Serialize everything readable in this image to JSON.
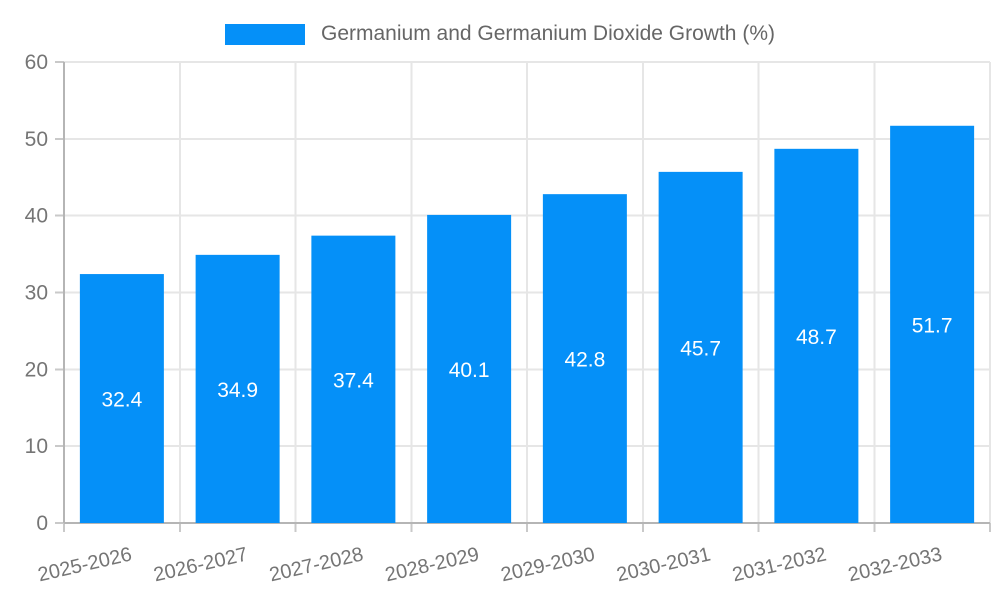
{
  "legend": {
    "position": "top",
    "items": [
      {
        "label": "Germanium and Germanium Dioxide Growth (%)"
      }
    ]
  },
  "chart_data": {
    "type": "bar",
    "title": "Germanium and Germanium Dioxide Growth (%)",
    "categories": [
      "2025-2026",
      "2026-2027",
      "2027-2028",
      "2028-2029",
      "2029-2030",
      "2030-2031",
      "2031-2032",
      "2032-2033"
    ],
    "series": [
      {
        "name": "Germanium and Germanium Dioxide Growth (%)",
        "values": [
          32.4,
          34.9,
          37.4,
          40.1,
          42.8,
          45.7,
          48.7,
          51.7
        ]
      }
    ],
    "bar_value_labels": [
      "32.4",
      "34.9",
      "37.4",
      "40.1",
      "42.8",
      "45.7",
      "48.7",
      "51.7"
    ],
    "xlabel": "",
    "ylabel": "",
    "ylim": [
      0,
      60
    ],
    "yticks": [
      0,
      10,
      20,
      30,
      40,
      50,
      60
    ],
    "grid": true,
    "legend_position": "top",
    "x_tick_rotation_deg": -13,
    "colors": {
      "bar": "#0590f8",
      "bar_label_text": "#ffffff",
      "grid_line": "#e6e6e6",
      "axis_line": "#b5b5b5",
      "tick_mark": "#c9c9c9",
      "tick_text": "#757575",
      "legend_text": "#666666",
      "background": "#ffffff"
    }
  }
}
